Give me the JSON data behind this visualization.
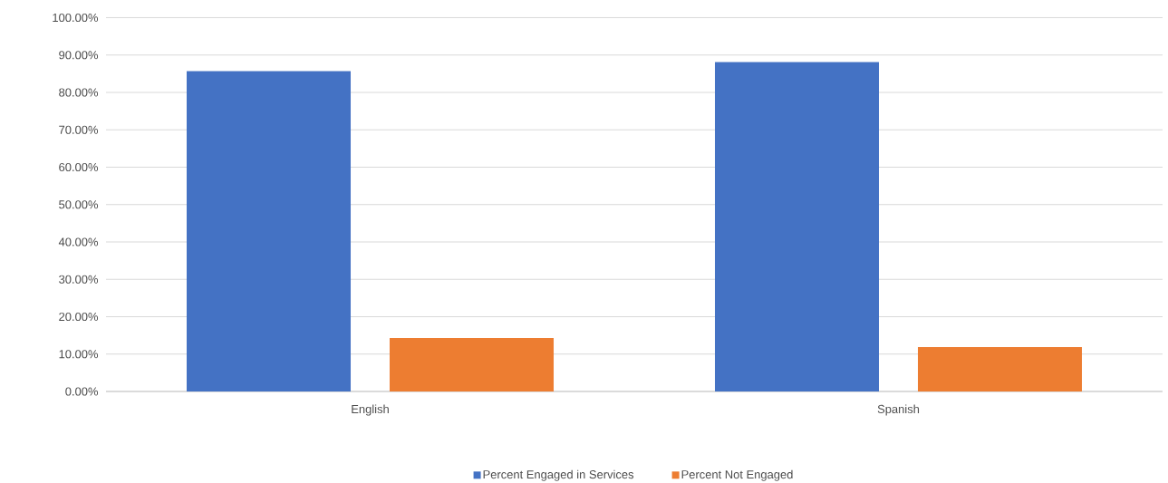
{
  "chart_data": {
    "type": "bar",
    "categories": [
      "English",
      "Spanish"
    ],
    "series": [
      {
        "name": "Percent Engaged in Services",
        "color": "#4472c4",
        "values": [
          85.7,
          88.1
        ]
      },
      {
        "name": "Percent Not Engaged",
        "color": "#ed7d31",
        "values": [
          14.3,
          11.9
        ]
      }
    ],
    "ylim": [
      0,
      100
    ],
    "yticks": [
      {
        "value": 0,
        "label": "0.00%"
      },
      {
        "value": 10,
        "label": "10.00%"
      },
      {
        "value": 20,
        "label": "20.00%"
      },
      {
        "value": 30,
        "label": "30.00%"
      },
      {
        "value": 40,
        "label": "40.00%"
      },
      {
        "value": 50,
        "label": "50.00%"
      },
      {
        "value": 60,
        "label": "60.00%"
      },
      {
        "value": 70,
        "label": "70.00%"
      },
      {
        "value": 80,
        "label": "80.00%"
      },
      {
        "value": 90,
        "label": "90.00%"
      },
      {
        "value": 100,
        "label": "100.00%"
      }
    ],
    "grid": "y",
    "legend": "bottom"
  }
}
